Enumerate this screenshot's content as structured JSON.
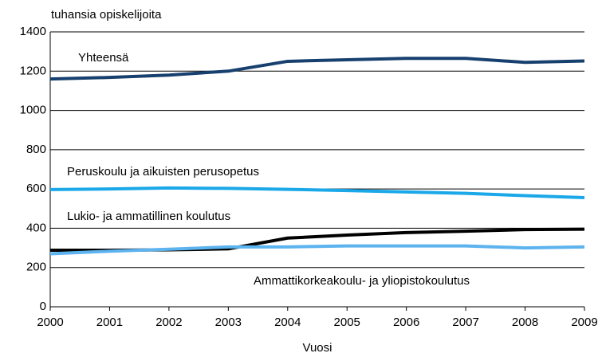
{
  "chart_data": {
    "type": "line",
    "ylabel": "tuhansia opiskelijoita",
    "xlabel": "Vuosi",
    "x": [
      2000,
      2001,
      2002,
      2003,
      2004,
      2005,
      2006,
      2007,
      2008,
      2009
    ],
    "series": [
      {
        "name": "Yhteensä",
        "color": "#17406f",
        "values": [
          1160,
          1168,
          1180,
          1200,
          1250,
          1258,
          1265,
          1265,
          1245,
          1252
        ]
      },
      {
        "name": "Peruskoulu ja aikuisten perusopetus",
        "color": "#1aa8e8",
        "values": [
          597,
          600,
          605,
          603,
          598,
          592,
          585,
          578,
          566,
          556
        ]
      },
      {
        "name": "Lukio- ja ammatillinen koulutus",
        "color": "#000000",
        "values": [
          288,
          288,
          290,
          295,
          350,
          365,
          378,
          385,
          393,
          395
        ]
      },
      {
        "name": "Ammattikorkeakoulu- ja yliopistokoulutus",
        "color": "#5cb3ee",
        "values": [
          270,
          283,
          293,
          305,
          305,
          310,
          310,
          310,
          300,
          305
        ]
      }
    ],
    "xlim": [
      2000,
      2009
    ],
    "xticks": [
      2000,
      2001,
      2002,
      2003,
      2004,
      2005,
      2006,
      2007,
      2008,
      2009
    ],
    "ylim": [
      0,
      1400
    ],
    "yticks": [
      0,
      200,
      400,
      600,
      800,
      1000,
      1200,
      1400
    ],
    "grid": true
  }
}
